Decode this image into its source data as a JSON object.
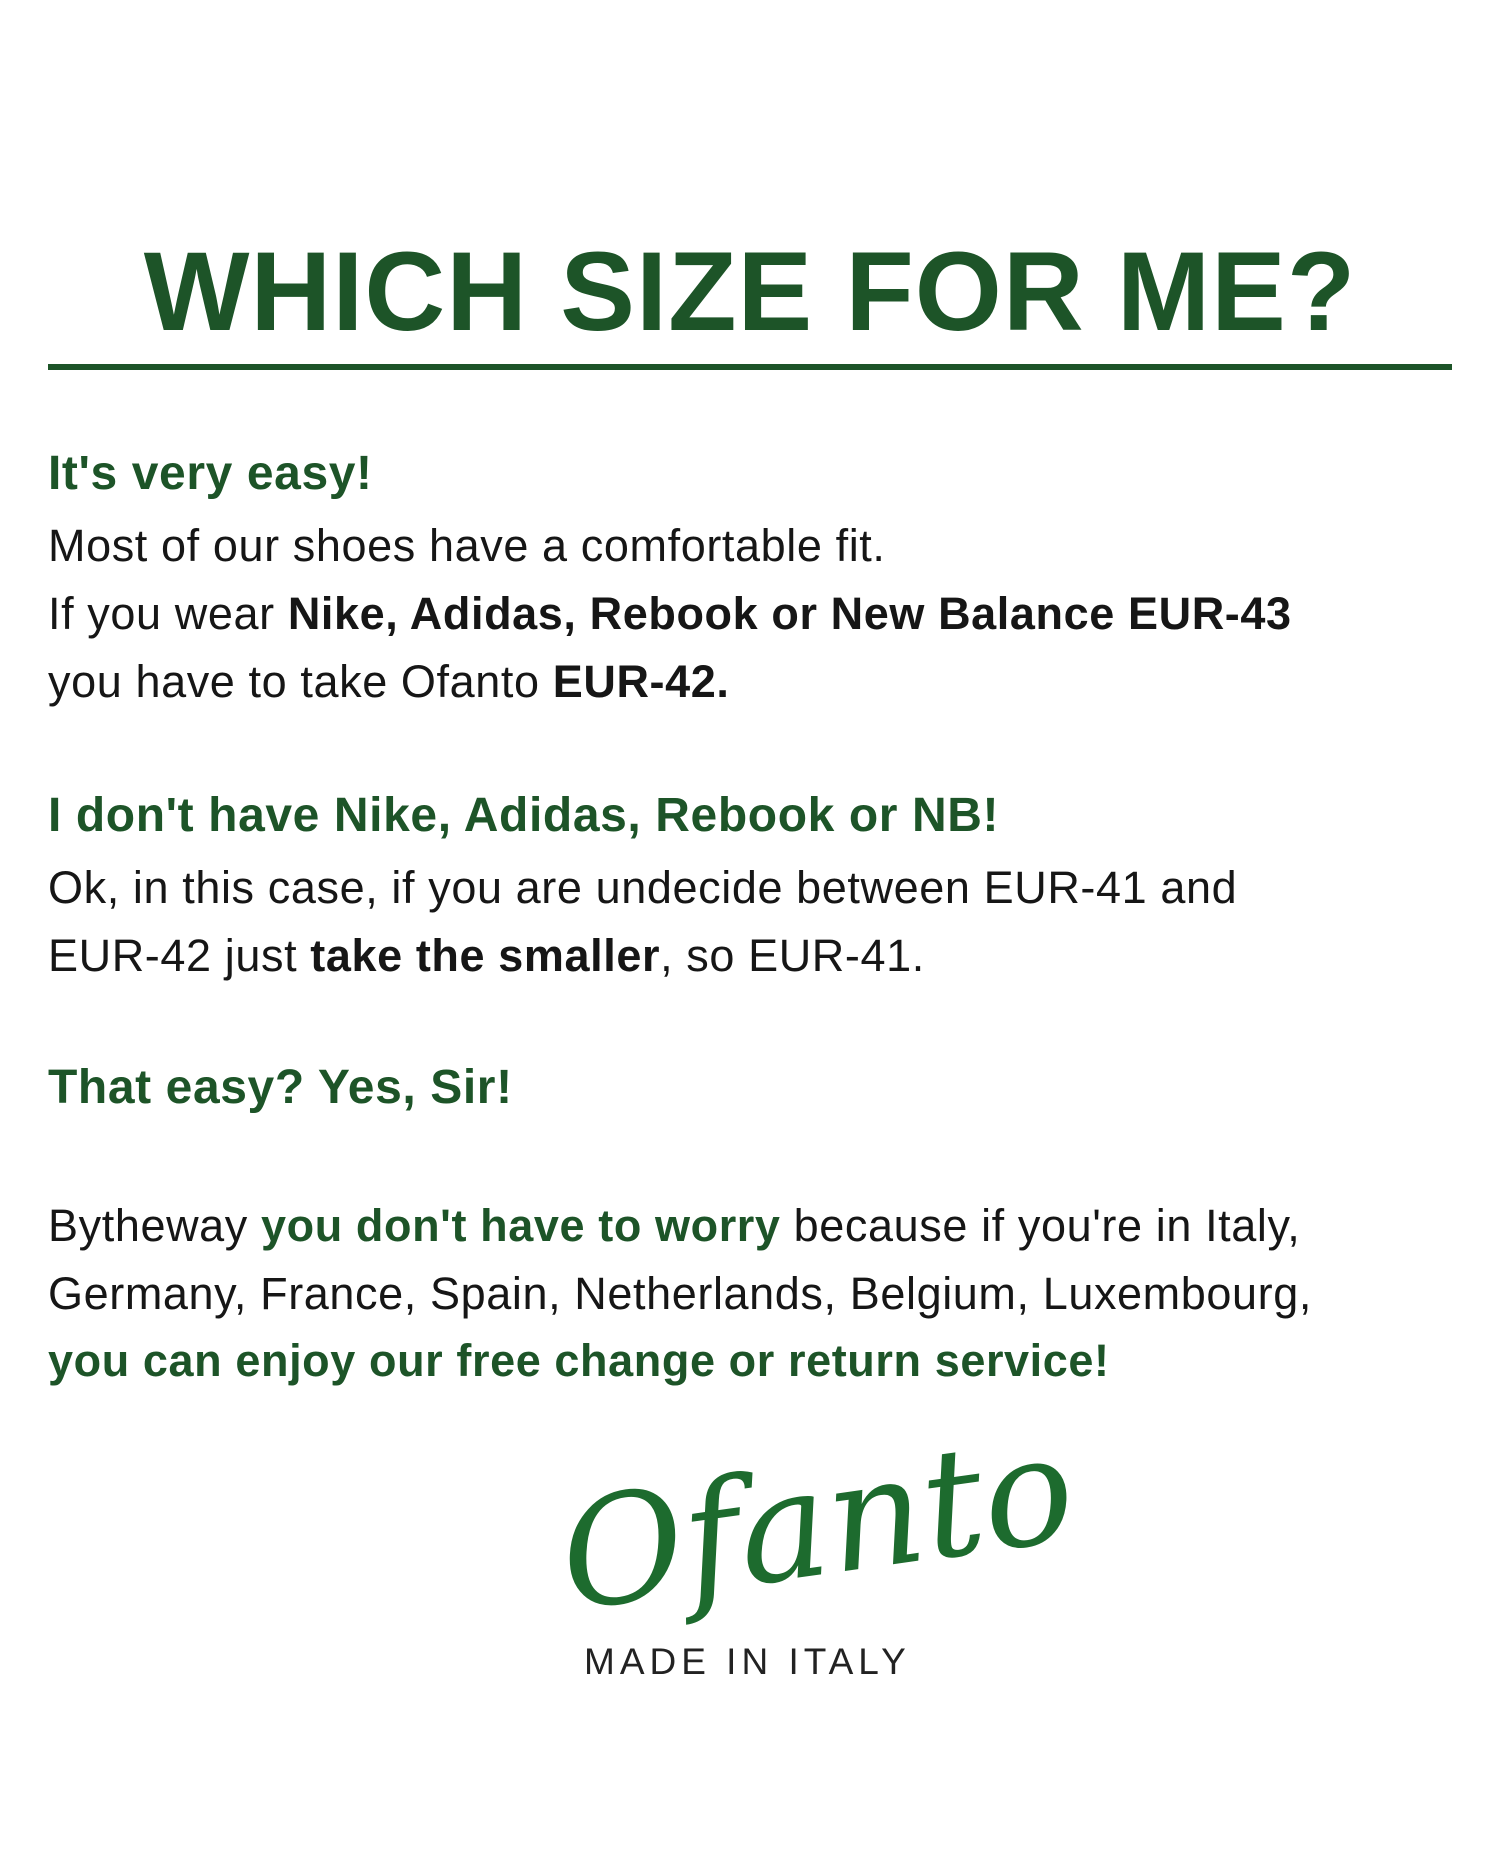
{
  "title": "WHICH SIZE FOR ME?",
  "section1": {
    "heading": "It's very easy!",
    "line1": "Most of our shoes have a comfortable fit.",
    "line2_a": "If you wear ",
    "line2_b": "Nike, Adidas, Rebook or New Balance EUR-43",
    "line3_a": "you have to take Ofanto ",
    "line3_b": "EUR-42."
  },
  "section2": {
    "heading": "I don't have Nike, Adidas, Rebook or NB!",
    "line1": "Ok, in this case, if you are undecide between EUR-41 and",
    "line2_a": "EUR-42 just ",
    "line2_b": "take the smaller",
    "line2_c": ", so EUR-41."
  },
  "section3": {
    "heading": "That easy? Yes, Sir!"
  },
  "section4": {
    "line1_a": "Bytheway ",
    "line1_b": "you don't have to worry",
    "line1_c": " because if you're in Italy,",
    "line2": "Germany, France, Spain, Netherlands, Belgium, Luxembourg,",
    "line3": "you can enjoy our free change or return service!"
  },
  "logo": {
    "brand": "Ofanto",
    "tagline": "MADE IN ITALY"
  },
  "colors": {
    "accent": "#1d5428",
    "text": "#161616"
  }
}
